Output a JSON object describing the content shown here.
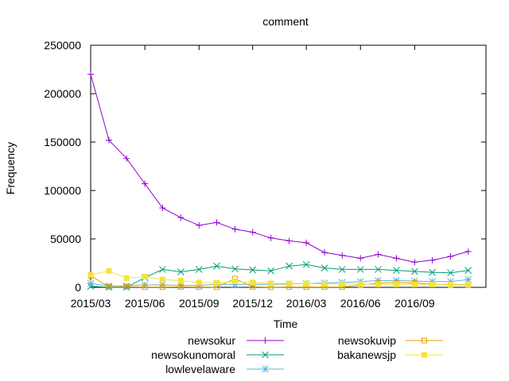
{
  "chart_data": {
    "type": "line",
    "title": "comment",
    "xlabel": "Time",
    "ylabel": "Frequency",
    "ylim": [
      0,
      250000
    ],
    "yticks": [
      0,
      50000,
      100000,
      150000,
      200000,
      250000
    ],
    "y_tick_labels": [
      "0",
      "50000",
      "100000",
      "150000",
      "200000",
      "250000"
    ],
    "x": [
      "2015-03-01",
      "2015-04-01",
      "2015-05-01",
      "2015-06-01",
      "2015-07-01",
      "2015-08-01",
      "2015-09-01",
      "2015-10-01",
      "2015-11-01",
      "2015-12-01",
      "2016-01-01",
      "2016-02-01",
      "2016-03-01",
      "2016-04-01",
      "2016-05-01",
      "2016-06-01",
      "2016-07-01",
      "2016-08-01",
      "2016-09-01",
      "2016-10-01",
      "2016-11-01",
      "2016-12-01"
    ],
    "xlim": [
      "2015-03-01",
      "2016-12-31"
    ],
    "x_ticks": [
      "2015-03-01",
      "2015-06-01",
      "2015-09-01",
      "2015-12-01",
      "2016-03-01",
      "2016-06-01",
      "2016-09-01"
    ],
    "x_tick_labels": [
      "2015/03",
      "2015/06",
      "2015/09",
      "2015/12",
      "2016/03",
      "2016/06",
      "2016/09"
    ],
    "grid": false,
    "legend_placement": "bottom",
    "series": [
      {
        "name": "newsokur",
        "color": "#9400d3",
        "marker": "plus",
        "values": [
          220000,
          152000,
          133000,
          107000,
          82000,
          72000,
          64000,
          67000,
          60000,
          57000,
          51000,
          48000,
          46000,
          36000,
          33000,
          30000,
          34000,
          30000,
          26000,
          28000,
          32000,
          37000
        ]
      },
      {
        "name": "newsokunomoral",
        "color": "#009e73",
        "marker": "cross",
        "values": [
          1000,
          200,
          200,
          10000,
          18500,
          16000,
          18500,
          22000,
          19000,
          18000,
          17000,
          22000,
          23500,
          20000,
          18500,
          18500,
          18500,
          17500,
          16500,
          15500,
          15000,
          17500
        ]
      },
      {
        "name": "lowlevelaware",
        "color": "#56b4e9",
        "marker": "star",
        "values": [
          4000,
          1500,
          1500,
          2500,
          2500,
          2000,
          2000,
          3000,
          3000,
          3000,
          3000,
          3500,
          4000,
          4500,
          5000,
          6000,
          7000,
          7000,
          6500,
          6000,
          6000,
          8000
        ]
      },
      {
        "name": "newsokuvip",
        "color": "#e69f00",
        "marker": "square",
        "values": [
          12000,
          500,
          500,
          300,
          300,
          500,
          300,
          200,
          9000,
          500,
          200,
          300,
          300,
          300,
          300,
          2500,
          4500,
          5000,
          4500,
          3500,
          2500,
          2500
        ]
      },
      {
        "name": "bakanewsjp",
        "color": "#f0e442",
        "marker": "filled-square",
        "values": [
          13000,
          17000,
          9500,
          11000,
          8000,
          7000,
          5000,
          4500,
          6000,
          5000,
          4000,
          4000,
          4000,
          3500,
          3500,
          3500,
          3000,
          3000,
          3000,
          3000,
          3000,
          3000
        ]
      }
    ]
  }
}
